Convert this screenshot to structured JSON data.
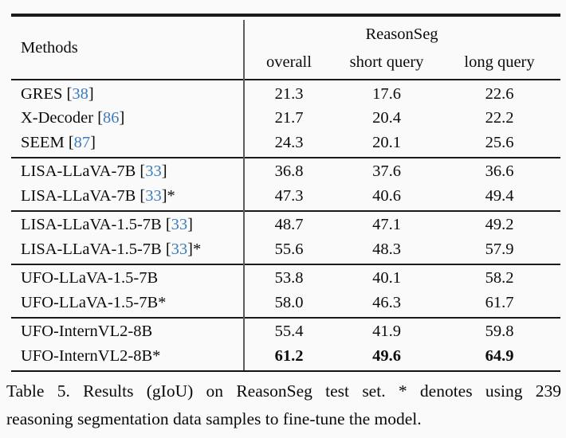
{
  "table": {
    "methods_header": "Methods",
    "group_header": "ReasonSeg",
    "subheaders": [
      "overall",
      "short query",
      "long query"
    ],
    "groups": [
      {
        "rows": [
          {
            "name": "GRES",
            "cite": "38",
            "star": false,
            "bold": false,
            "values": [
              "21.3",
              "17.6",
              "22.6"
            ]
          },
          {
            "name": "X-Decoder",
            "cite": "86",
            "star": false,
            "bold": false,
            "values": [
              "21.7",
              "20.4",
              "22.2"
            ]
          },
          {
            "name": "SEEM",
            "cite": "87",
            "star": false,
            "bold": false,
            "values": [
              "24.3",
              "20.1",
              "25.6"
            ]
          }
        ]
      },
      {
        "rows": [
          {
            "name": "LISA-LLaVA-7B",
            "cite": "33",
            "star": false,
            "bold": false,
            "values": [
              "36.8",
              "37.6",
              "36.6"
            ]
          },
          {
            "name": "LISA-LLaVA-7B",
            "cite": "33",
            "star": true,
            "bold": false,
            "values": [
              "47.3",
              "40.6",
              "49.4"
            ]
          }
        ]
      },
      {
        "rows": [
          {
            "name": "LISA-LLaVA-1.5-7B",
            "cite": "33",
            "star": false,
            "bold": false,
            "values": [
              "48.7",
              "47.1",
              "49.2"
            ]
          },
          {
            "name": "LISA-LLaVA-1.5-7B",
            "cite": "33",
            "star": true,
            "bold": false,
            "values": [
              "55.6",
              "48.3",
              "57.9"
            ]
          }
        ]
      },
      {
        "rows": [
          {
            "name": "UFO-LLaVA-1.5-7B",
            "cite": null,
            "star": false,
            "bold": false,
            "values": [
              "53.8",
              "40.1",
              "58.2"
            ]
          },
          {
            "name": "UFO-LLaVA-1.5-7B",
            "cite": null,
            "star": true,
            "bold": false,
            "values": [
              "58.0",
              "46.3",
              "61.7"
            ]
          }
        ]
      },
      {
        "rows": [
          {
            "name": "UFO-InternVL2-8B",
            "cite": null,
            "star": false,
            "bold": false,
            "values": [
              "55.4",
              "41.9",
              "59.8"
            ]
          },
          {
            "name": "UFO-InternVL2-8B",
            "cite": null,
            "star": true,
            "bold": true,
            "values": [
              "61.2",
              "49.6",
              "64.9"
            ]
          }
        ]
      }
    ]
  },
  "caption": {
    "line1": "Table 5. Results (gIoU) on ReasonSeg test set. * denotes using 239",
    "line2": "reasoning segmentation data samples to fine-tune the model."
  },
  "colors": {
    "citation_blue": "#3d7cbd",
    "rule_black": "#1a1a1a",
    "divider_gray": "#5c5c5c"
  }
}
